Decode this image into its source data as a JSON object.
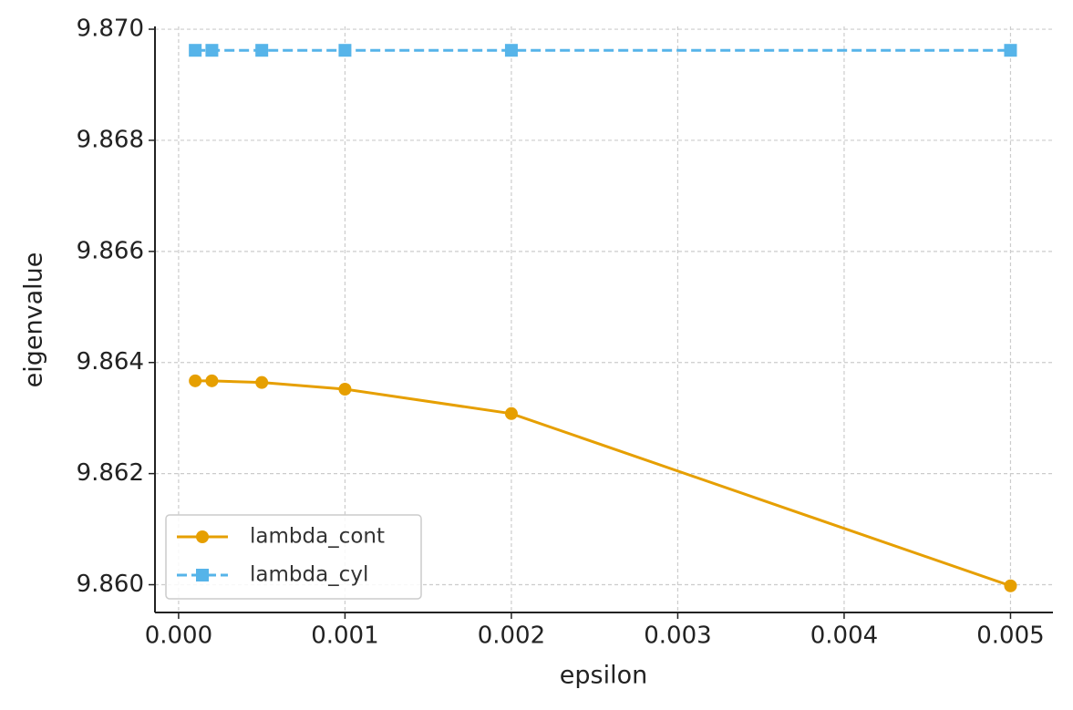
{
  "chart_data": {
    "type": "line",
    "x_label": "epsilon",
    "y_label": "eigenvalue",
    "x": [
      0.0001,
      0.0002,
      0.0005,
      0.001,
      0.002,
      0.005
    ],
    "series": [
      {
        "name": "lambda_cont",
        "color": "#E69F00",
        "marker": "circle",
        "linestyle": "solid",
        "values": [
          9.86367,
          9.86367,
          9.86364,
          9.86352,
          9.86308,
          9.85998
        ]
      },
      {
        "name": "lambda_cyl",
        "color": "#56B4E9",
        "marker": "square",
        "linestyle": "dashed",
        "values": [
          9.86962,
          9.86962,
          9.86962,
          9.86962,
          9.86962,
          9.86962
        ]
      }
    ],
    "xlim": [
      -0.000142,
      0.005255
    ],
    "ylim": [
      9.8595,
      9.87005
    ],
    "xticks": [
      {
        "value": 0,
        "label": "0.000"
      },
      0.001,
      0.002,
      0.003,
      0.004,
      0.005
    ],
    "yticks": [
      {
        "value": 9.86,
        "label": "9.860"
      },
      9.862,
      9.864,
      9.866,
      9.868,
      {
        "value": 9.87,
        "label": "9.870"
      }
    ],
    "grid": true,
    "legend": "lower left"
  }
}
